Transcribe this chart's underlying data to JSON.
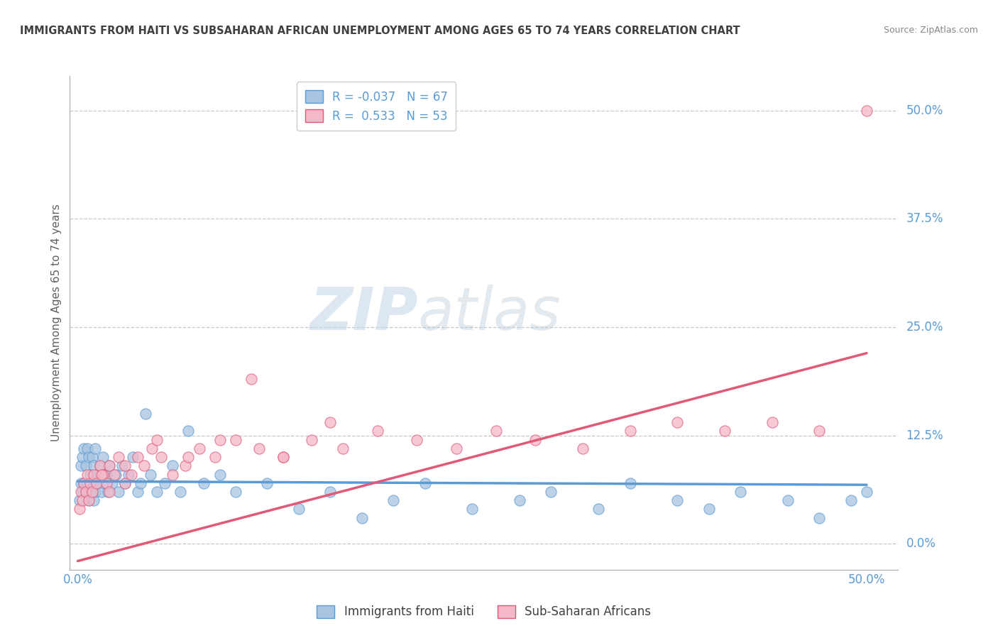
{
  "title": "IMMIGRANTS FROM HAITI VS SUBSAHARAN AFRICAN UNEMPLOYMENT AMONG AGES 65 TO 74 YEARS CORRELATION CHART",
  "source": "Source: ZipAtlas.com",
  "ylabel": "Unemployment Among Ages 65 to 74 years",
  "xlim": [
    -0.005,
    0.52
  ],
  "ylim": [
    -0.03,
    0.54
  ],
  "xticks": [
    0.0,
    0.5
  ],
  "xtick_labels": [
    "0.0%",
    "50.0%"
  ],
  "yticks": [
    0.0,
    0.125,
    0.25,
    0.375,
    0.5
  ],
  "ytick_labels": [
    "0.0%",
    "12.5%",
    "25.0%",
    "37.5%",
    "50.0%"
  ],
  "haiti_color": "#a8c4e0",
  "haiti_edge_color": "#5b9bd5",
  "haiti_line_color": "#5b9bd5",
  "subsaharan_color": "#f4b8c8",
  "subsaharan_edge_color": "#e05a78",
  "subsaharan_line_color": "#e05a78",
  "haiti_R": -0.037,
  "haiti_N": 67,
  "subsaharan_R": 0.533,
  "subsaharan_N": 53,
  "watermark_zip": "ZIP",
  "watermark_atlas": "atlas",
  "background_color": "#ffffff",
  "grid_color": "#c8c8c8",
  "title_color": "#404040",
  "axis_color": "#5b9bd5",
  "haiti_line_y_at_0": 0.072,
  "haiti_line_y_at_50": 0.068,
  "sub_line_y_at_0": -0.02,
  "sub_line_y_at_50": 0.22,
  "haiti_scatter_x": [
    0.001,
    0.002,
    0.002,
    0.003,
    0.003,
    0.004,
    0.004,
    0.005,
    0.005,
    0.006,
    0.006,
    0.007,
    0.007,
    0.008,
    0.008,
    0.009,
    0.009,
    0.01,
    0.01,
    0.011,
    0.011,
    0.012,
    0.013,
    0.014,
    0.015,
    0.016,
    0.017,
    0.018,
    0.019,
    0.02,
    0.022,
    0.024,
    0.026,
    0.028,
    0.03,
    0.032,
    0.035,
    0.038,
    0.04,
    0.043,
    0.046,
    0.05,
    0.055,
    0.06,
    0.065,
    0.07,
    0.08,
    0.09,
    0.1,
    0.12,
    0.14,
    0.16,
    0.18,
    0.2,
    0.22,
    0.25,
    0.28,
    0.3,
    0.33,
    0.35,
    0.38,
    0.4,
    0.42,
    0.45,
    0.47,
    0.49,
    0.5
  ],
  "haiti_scatter_y": [
    0.05,
    0.07,
    0.09,
    0.06,
    0.1,
    0.07,
    0.11,
    0.06,
    0.09,
    0.07,
    0.11,
    0.05,
    0.1,
    0.06,
    0.08,
    0.07,
    0.1,
    0.05,
    0.09,
    0.06,
    0.11,
    0.08,
    0.07,
    0.09,
    0.06,
    0.1,
    0.07,
    0.08,
    0.06,
    0.09,
    0.07,
    0.08,
    0.06,
    0.09,
    0.07,
    0.08,
    0.1,
    0.06,
    0.07,
    0.15,
    0.08,
    0.06,
    0.07,
    0.09,
    0.06,
    0.13,
    0.07,
    0.08,
    0.06,
    0.07,
    0.04,
    0.06,
    0.03,
    0.05,
    0.07,
    0.04,
    0.05,
    0.06,
    0.04,
    0.07,
    0.05,
    0.04,
    0.06,
    0.05,
    0.03,
    0.05,
    0.06
  ],
  "subsaharan_scatter_x": [
    0.001,
    0.002,
    0.003,
    0.004,
    0.005,
    0.006,
    0.007,
    0.008,
    0.009,
    0.01,
    0.012,
    0.014,
    0.016,
    0.018,
    0.02,
    0.023,
    0.026,
    0.03,
    0.034,
    0.038,
    0.042,
    0.047,
    0.053,
    0.06,
    0.068,
    0.077,
    0.087,
    0.1,
    0.115,
    0.13,
    0.148,
    0.168,
    0.19,
    0.215,
    0.24,
    0.265,
    0.29,
    0.32,
    0.35,
    0.38,
    0.41,
    0.44,
    0.47,
    0.13,
    0.16,
    0.11,
    0.09,
    0.07,
    0.05,
    0.03,
    0.02,
    0.015,
    0.5
  ],
  "subsaharan_scatter_y": [
    0.04,
    0.06,
    0.05,
    0.07,
    0.06,
    0.08,
    0.05,
    0.07,
    0.06,
    0.08,
    0.07,
    0.09,
    0.08,
    0.07,
    0.09,
    0.08,
    0.1,
    0.09,
    0.08,
    0.1,
    0.09,
    0.11,
    0.1,
    0.08,
    0.09,
    0.11,
    0.1,
    0.12,
    0.11,
    0.1,
    0.12,
    0.11,
    0.13,
    0.12,
    0.11,
    0.13,
    0.12,
    0.11,
    0.13,
    0.14,
    0.13,
    0.14,
    0.13,
    0.1,
    0.14,
    0.19,
    0.12,
    0.1,
    0.12,
    0.07,
    0.06,
    0.08,
    0.5
  ]
}
